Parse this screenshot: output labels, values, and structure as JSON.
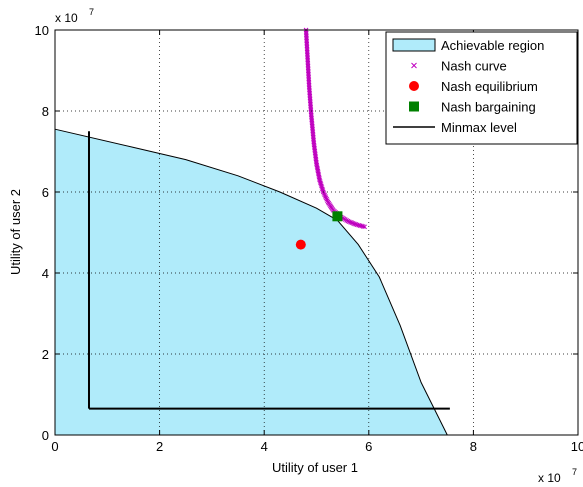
{
  "chart_data": {
    "type": "scatter",
    "xlabel": "Utility of user 1",
    "ylabel": "Utility of user 2",
    "x_multiplier_label": "x 10",
    "y_multiplier_label": "x 10",
    "multiplier_exponent": "7",
    "xlim": [
      0,
      10
    ],
    "ylim": [
      0,
      10
    ],
    "x_ticks": [
      0,
      2,
      4,
      6,
      8,
      10
    ],
    "y_ticks": [
      0,
      2,
      4,
      6,
      8,
      10
    ],
    "x_tick_labels": [
      "0",
      "2",
      "4",
      "6",
      "8",
      "10"
    ],
    "y_tick_labels": [
      "0",
      "2",
      "4",
      "6",
      "8",
      "10"
    ],
    "grid": true,
    "legend_position": "top-right",
    "colors": {
      "region_fill": "#b0ebfa",
      "nash_curve": "#bf00bf",
      "nash_equilibrium": "#ff0000",
      "nash_bargaining": "#008000",
      "minmax": "#000000"
    },
    "series": [
      {
        "name": "Achievable region",
        "kind": "area",
        "boundary": [
          [
            0,
            7.55
          ],
          [
            1.5,
            7.1
          ],
          [
            2.5,
            6.8
          ],
          [
            3.5,
            6.4
          ],
          [
            4.3,
            6.0
          ],
          [
            5.0,
            5.6
          ],
          [
            5.4,
            5.3
          ],
          [
            5.8,
            4.7
          ],
          [
            6.2,
            3.9
          ],
          [
            6.6,
            2.7
          ],
          [
            7.0,
            1.3
          ],
          [
            7.5,
            0
          ]
        ]
      },
      {
        "name": "Nash curve",
        "kind": "scatter",
        "points": [
          [
            4.8,
            10.0
          ],
          [
            4.83,
            9.3
          ],
          [
            4.86,
            8.6
          ],
          [
            4.9,
            7.9
          ],
          [
            4.95,
            7.2
          ],
          [
            5.0,
            6.7
          ],
          [
            5.06,
            6.3
          ],
          [
            5.13,
            6.0
          ],
          [
            5.22,
            5.75
          ],
          [
            5.32,
            5.55
          ],
          [
            5.45,
            5.4
          ],
          [
            5.6,
            5.28
          ],
          [
            5.75,
            5.2
          ],
          [
            5.92,
            5.14
          ]
        ]
      },
      {
        "name": "Nash equilibrium",
        "kind": "point",
        "points": [
          [
            4.7,
            4.7
          ]
        ]
      },
      {
        "name": "Nash bargaining",
        "kind": "point",
        "points": [
          [
            5.4,
            5.4
          ]
        ]
      },
      {
        "name": "Minmax level",
        "kind": "line",
        "segments": [
          [
            [
              0.65,
              7.5
            ],
            [
              0.65,
              0.65
            ]
          ],
          [
            [
              0.65,
              0.65
            ],
            [
              7.55,
              0.65
            ]
          ]
        ]
      }
    ]
  }
}
